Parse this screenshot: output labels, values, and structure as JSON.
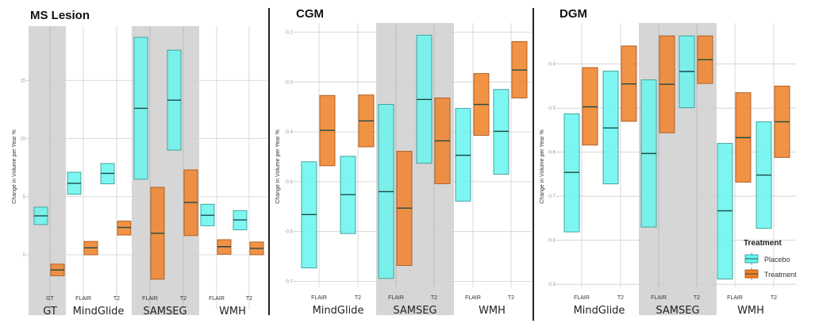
{
  "chart_data": [
    {
      "type": "box",
      "title": "MS Lesion",
      "ylabel": "Change in Volume per Year %",
      "xlabel": "",
      "ylim": [
        -3.6,
        19.6
      ],
      "yticks": [
        0,
        5,
        10,
        15
      ],
      "ytick_labels": [
        "0",
        "5",
        "10",
        "15"
      ],
      "grid": true,
      "groups": [
        {
          "name": "GT",
          "shaded": true,
          "categories": [
            "GT"
          ]
        },
        {
          "name": "MindGlide",
          "shaded": false,
          "categories": [
            "FLAIR",
            "T2"
          ]
        },
        {
          "name": "SAMSEG",
          "shaded": true,
          "categories": [
            "FLAIR",
            "T2"
          ]
        },
        {
          "name": "WMH",
          "shaded": false,
          "categories": [
            "FLAIR",
            "T2"
          ]
        }
      ],
      "series": [
        {
          "name": "Placebo",
          "boxes": [
            {
              "group": "GT",
              "category": "GT",
              "low": 2.6,
              "median": 3.35,
              "high": 4.1
            },
            {
              "group": "MindGlide",
              "category": "FLAIR",
              "low": 5.2,
              "median": 6.15,
              "high": 7.1
            },
            {
              "group": "MindGlide",
              "category": "T2",
              "low": 6.1,
              "median": 7.0,
              "high": 7.85
            },
            {
              "group": "SAMSEG",
              "category": "FLAIR",
              "low": 6.5,
              "median": 12.6,
              "high": 18.7
            },
            {
              "group": "SAMSEG",
              "category": "T2",
              "low": 9.0,
              "median": 13.3,
              "high": 17.6
            },
            {
              "group": "WMH",
              "category": "FLAIR",
              "low": 2.5,
              "median": 3.4,
              "high": 4.35
            },
            {
              "group": "WMH",
              "category": "T2",
              "low": 2.15,
              "median": 3.0,
              "high": 3.8
            }
          ]
        },
        {
          "name": "Treatment",
          "boxes": [
            {
              "group": "GT",
              "category": "GT",
              "low": -1.8,
              "median": -1.3,
              "high": -0.8
            },
            {
              "group": "MindGlide",
              "category": "FLAIR",
              "low": 0.0,
              "median": 0.6,
              "high": 1.15
            },
            {
              "group": "MindGlide",
              "category": "T2",
              "low": 1.7,
              "median": 2.35,
              "high": 2.9
            },
            {
              "group": "SAMSEG",
              "category": "FLAIR",
              "low": -2.1,
              "median": 1.85,
              "high": 5.8
            },
            {
              "group": "SAMSEG",
              "category": "T2",
              "low": 1.65,
              "median": 4.5,
              "high": 7.3
            },
            {
              "group": "WMH",
              "category": "FLAIR",
              "low": 0.05,
              "median": 0.7,
              "high": 1.3
            },
            {
              "group": "WMH",
              "category": "T2",
              "low": 0.0,
              "median": 0.55,
              "high": 1.1
            }
          ]
        }
      ]
    },
    {
      "type": "box",
      "title": "CGM",
      "ylabel": "Change in Volume per Year %",
      "xlabel": "",
      "ylim": [
        -0.722,
        -0.18
      ],
      "yticks": [
        -0.2,
        -0.3,
        -0.4,
        -0.5,
        -0.6,
        -0.7
      ],
      "ytick_labels": [
        "-0.2",
        "-0.3",
        "-0.4",
        "-0.5",
        "-0.6",
        "-0.7"
      ],
      "grid": true,
      "groups": [
        {
          "name": "MindGlide",
          "shaded": false,
          "categories": [
            "FLAIR",
            "T2"
          ]
        },
        {
          "name": "SAMSEG",
          "shaded": true,
          "categories": [
            "FLAIR",
            "T2"
          ]
        },
        {
          "name": "WMH",
          "shaded": false,
          "categories": [
            "FLAIR",
            "T2"
          ]
        }
      ],
      "series": [
        {
          "name": "Placebo",
          "boxes": [
            {
              "group": "MindGlide",
              "category": "FLAIR",
              "low": -0.673,
              "median": -0.566,
              "high": -0.46
            },
            {
              "group": "MindGlide",
              "category": "T2",
              "low": -0.604,
              "median": -0.526,
              "high": -0.449
            },
            {
              "group": "SAMSEG",
              "category": "FLAIR",
              "low": -0.694,
              "median": -0.52,
              "high": -0.345
            },
            {
              "group": "SAMSEG",
              "category": "T2",
              "low": -0.463,
              "median": -0.335,
              "high": -0.206
            },
            {
              "group": "WMH",
              "category": "FLAIR",
              "low": -0.539,
              "median": -0.447,
              "high": -0.353
            },
            {
              "group": "WMH",
              "category": "T2",
              "low": -0.485,
              "median": -0.399,
              "high": -0.315
            }
          ]
        },
        {
          "name": "Treatment",
          "boxes": [
            {
              "group": "MindGlide",
              "category": "FLAIR",
              "low": -0.468,
              "median": -0.397,
              "high": -0.327
            },
            {
              "group": "MindGlide",
              "category": "T2",
              "low": -0.43,
              "median": -0.378,
              "high": -0.326
            },
            {
              "group": "SAMSEG",
              "category": "FLAIR",
              "low": -0.668,
              "median": -0.553,
              "high": -0.439
            },
            {
              "group": "SAMSEG",
              "category": "T2",
              "low": -0.504,
              "median": -0.418,
              "high": -0.332
            },
            {
              "group": "WMH",
              "category": "FLAIR",
              "low": -0.407,
              "median": -0.345,
              "high": -0.283
            },
            {
              "group": "WMH",
              "category": "T2",
              "low": -0.332,
              "median": -0.276,
              "high": -0.219
            }
          ]
        }
      ]
    },
    {
      "type": "box",
      "title": "DGM",
      "ylabel": "Change in Volume per Year %",
      "xlabel": "",
      "ylim": [
        -0.918,
        -0.31
      ],
      "yticks": [
        -0.4,
        -0.5,
        -0.6,
        -0.7,
        -0.8,
        -0.9
      ],
      "ytick_labels": [
        "-0.4",
        "-0.5",
        "-0.6",
        "-0.7",
        "-0.8",
        "-0.9"
      ],
      "grid": true,
      "groups": [
        {
          "name": "MindGlide",
          "shaded": false,
          "categories": [
            "FLAIR",
            "T2"
          ]
        },
        {
          "name": "SAMSEG",
          "shaded": true,
          "categories": [
            "FLAIR",
            "T2"
          ]
        },
        {
          "name": "WMH",
          "shaded": false,
          "categories": [
            "FLAIR",
            "T2"
          ]
        }
      ],
      "series": [
        {
          "name": "Placebo",
          "boxes": [
            {
              "group": "MindGlide",
              "category": "FLAIR",
              "low": -0.781,
              "median": -0.646,
              "high": -0.513
            },
            {
              "group": "MindGlide",
              "category": "T2",
              "low": -0.672,
              "median": -0.545,
              "high": -0.416
            },
            {
              "group": "SAMSEG",
              "category": "FLAIR",
              "low": -0.77,
              "median": -0.603,
              "high": -0.436
            },
            {
              "group": "SAMSEG",
              "category": "T2",
              "low": -0.499,
              "median": -0.417,
              "high": -0.336
            },
            {
              "group": "WMH",
              "category": "FLAIR",
              "low": -0.888,
              "median": -0.733,
              "high": -0.58
            },
            {
              "group": "WMH",
              "category": "T2",
              "low": -0.773,
              "median": -0.652,
              "high": -0.531
            }
          ]
        },
        {
          "name": "Treatment",
          "boxes": [
            {
              "group": "MindGlide",
              "category": "FLAIR",
              "low": -0.584,
              "median": -0.497,
              "high": -0.408
            },
            {
              "group": "MindGlide",
              "category": "T2",
              "low": -0.53,
              "median": -0.445,
              "high": -0.359
            },
            {
              "group": "SAMSEG",
              "category": "FLAIR",
              "low": -0.556,
              "median": -0.446,
              "high": -0.336
            },
            {
              "group": "SAMSEG",
              "category": "T2",
              "low": -0.444,
              "median": -0.39,
              "high": -0.336
            },
            {
              "group": "WMH",
              "category": "FLAIR",
              "low": -0.668,
              "median": -0.567,
              "high": -0.465
            },
            {
              "group": "WMH",
              "category": "T2",
              "low": -0.612,
              "median": -0.531,
              "high": -0.45
            }
          ]
        }
      ],
      "legend": {
        "title": "Treatment",
        "placement": "bottom-right",
        "entries": [
          {
            "name": "Placebo",
            "color": "#66f5ef"
          },
          {
            "name": "Treatment",
            "color": "#f07f25"
          }
        ]
      }
    }
  ],
  "colors": {
    "placebo_fill": "#66f5ef",
    "placebo_stroke": "#3a9c96",
    "treatment_fill": "#f07f25",
    "treatment_stroke": "#a9581c",
    "median_line": "#1d4a44",
    "shade": "#d6d6d6",
    "grid": "#cfcfcf",
    "divider": "#222222"
  }
}
